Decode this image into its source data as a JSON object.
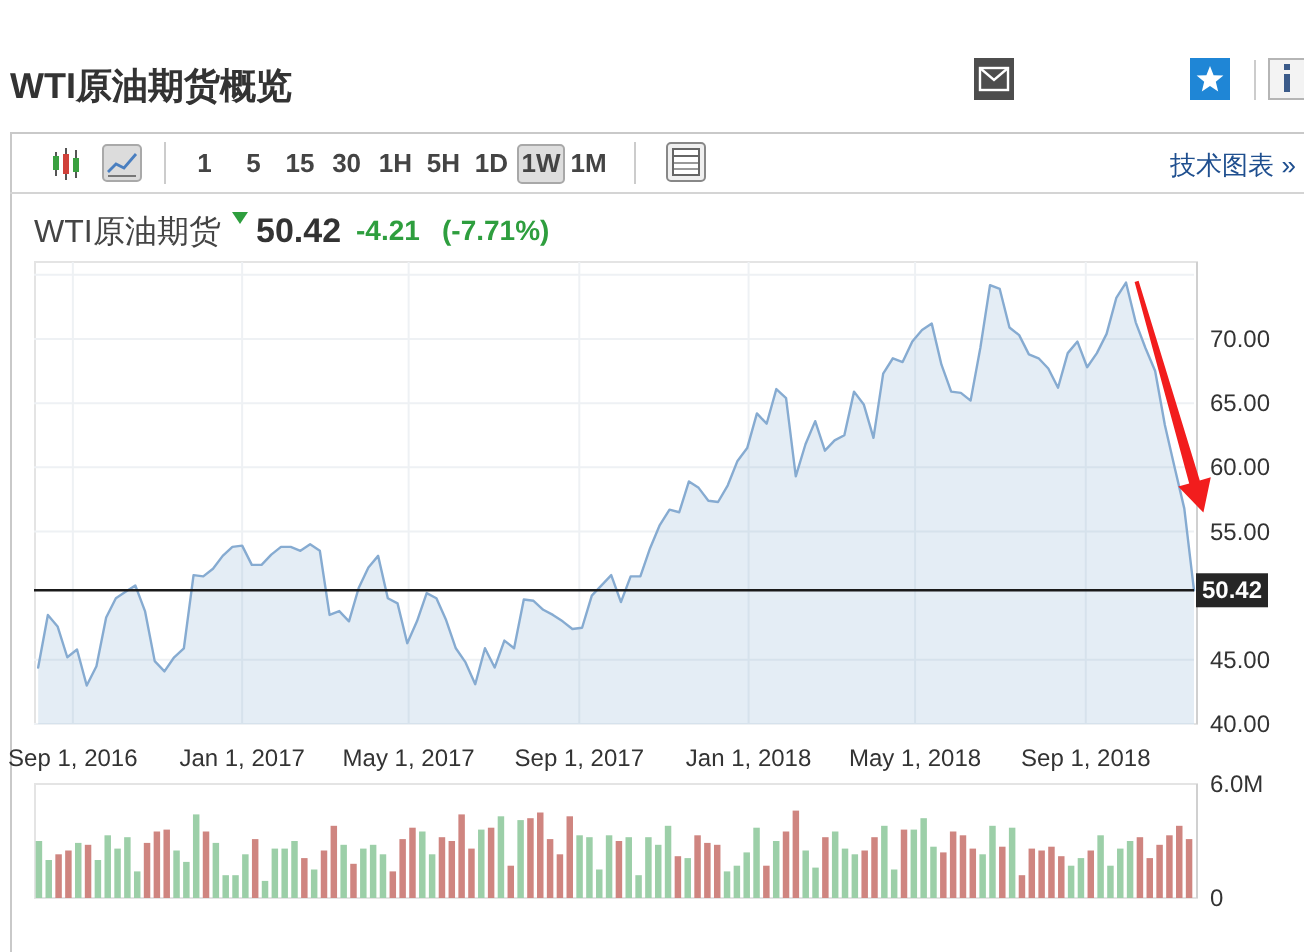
{
  "chart_data": [
    {
      "type": "area",
      "title": "WTI原油期货概览",
      "subtitle": "WTI原油期货",
      "annotations": [
        "1",
        "5",
        "15",
        "30",
        "1H",
        "5H",
        "1D",
        "1W",
        "1M",
        "技术图表 »",
        "50.42",
        "-4.21",
        "(-7.71%)"
      ],
      "x": [
        "2016-08-07",
        "2016-08-14",
        "2016-08-21",
        "2016-08-28",
        "2016-09-04",
        "2016-09-11",
        "2016-09-18",
        "2016-09-25",
        "2016-10-02",
        "2016-10-09",
        "2016-10-16",
        "2016-10-23",
        "2016-10-30",
        "2016-11-06",
        "2016-11-13",
        "2016-11-20",
        "2016-11-27",
        "2016-12-04",
        "2016-12-11",
        "2016-12-18",
        "2016-12-25",
        "2017-01-01",
        "2017-01-08",
        "2017-01-15",
        "2017-01-22",
        "2017-01-29",
        "2017-02-05",
        "2017-02-12",
        "2017-02-19",
        "2017-02-26",
        "2017-03-05",
        "2017-03-12",
        "2017-03-19",
        "2017-03-26",
        "2017-04-02",
        "2017-04-09",
        "2017-04-16",
        "2017-04-23",
        "2017-04-30",
        "2017-05-07",
        "2017-05-14",
        "2017-05-21",
        "2017-05-28",
        "2017-06-04",
        "2017-06-11",
        "2017-06-18",
        "2017-06-25",
        "2017-07-02",
        "2017-07-09",
        "2017-07-16",
        "2017-07-23",
        "2017-07-30",
        "2017-08-06",
        "2017-08-13",
        "2017-08-20",
        "2017-08-27",
        "2017-09-03",
        "2017-09-10",
        "2017-09-17",
        "2017-09-24",
        "2017-10-01",
        "2017-10-08",
        "2017-10-15",
        "2017-10-22",
        "2017-10-29",
        "2017-11-05",
        "2017-11-12",
        "2017-11-19",
        "2017-11-26",
        "2017-12-03",
        "2017-12-10",
        "2017-12-17",
        "2017-12-24",
        "2017-12-31",
        "2018-01-07",
        "2018-01-14",
        "2018-01-21",
        "2018-01-28",
        "2018-02-04",
        "2018-02-11",
        "2018-02-18",
        "2018-02-25",
        "2018-03-04",
        "2018-03-11",
        "2018-03-18",
        "2018-03-25",
        "2018-04-01",
        "2018-04-08",
        "2018-04-15",
        "2018-04-22",
        "2018-04-29",
        "2018-05-06",
        "2018-05-13",
        "2018-05-20",
        "2018-05-27",
        "2018-06-03",
        "2018-06-10",
        "2018-06-17",
        "2018-06-24",
        "2018-07-01",
        "2018-07-08",
        "2018-07-15",
        "2018-07-22",
        "2018-07-29",
        "2018-08-05",
        "2018-08-12",
        "2018-08-19",
        "2018-08-26",
        "2018-09-02",
        "2018-09-09",
        "2018-09-16",
        "2018-09-23",
        "2018-09-30",
        "2018-10-07",
        "2018-10-14",
        "2018-10-21",
        "2018-10-28",
        "2018-11-04",
        "2018-11-11",
        "2018-11-18"
      ],
      "series": [
        {
          "color": "#86abd1",
          "values": [
            44.4,
            48.5,
            47.6,
            45.2,
            45.8,
            43.0,
            44.5,
            48.3,
            49.8,
            50.3,
            50.8,
            48.8,
            44.9,
            44.1,
            45.2,
            45.9,
            51.6,
            51.5,
            52.1,
            53.1,
            53.8,
            53.9,
            52.4,
            52.4,
            53.2,
            53.8,
            53.8,
            53.5,
            54.0,
            53.5,
            48.5,
            48.8,
            48.0,
            50.6,
            52.2,
            53.1,
            49.8,
            49.4,
            46.3,
            48.0,
            50.2,
            49.8,
            48.1,
            45.9,
            44.8,
            43.1,
            45.9,
            44.4,
            46.5,
            45.9,
            49.7,
            49.6,
            48.9,
            48.5,
            48.0,
            47.4,
            47.5,
            50.0,
            50.8,
            51.6,
            49.5,
            51.5,
            51.5,
            53.7,
            55.5,
            56.7,
            56.5,
            58.9,
            58.4,
            57.4,
            57.3,
            58.6,
            60.5,
            61.5,
            64.2,
            63.4,
            66.1,
            65.4,
            59.3,
            61.8,
            63.6,
            61.3,
            62.1,
            62.5,
            65.9,
            64.9,
            62.3,
            67.3,
            68.5,
            68.2,
            69.8,
            70.7,
            71.2,
            68.0,
            65.9,
            65.8,
            65.2,
            69.3,
            74.2,
            73.9,
            70.9,
            70.3,
            68.8,
            68.5,
            67.7,
            66.2,
            68.9,
            69.8,
            67.8,
            68.9,
            70.4,
            73.2,
            74.4,
            71.3,
            69.3,
            67.5,
            63.3,
            60.0,
            56.8,
            50.42
          ]
        }
      ],
      "xlim": [
        "2016-08-04",
        "2018-11-18"
      ],
      "xticks": [
        {
          "value": "2016-09-01",
          "label": "Sep 1, 2016"
        },
        {
          "value": "2017-01-01",
          "label": "Jan 1, 2017"
        },
        {
          "value": "2017-05-01",
          "label": "May 1, 2017"
        },
        {
          "value": "2017-09-01",
          "label": "Sep 1, 2017"
        },
        {
          "value": "2018-01-01",
          "label": "Jan 1, 2018"
        },
        {
          "value": "2018-05-01",
          "label": "May 1, 2018"
        },
        {
          "value": "2018-09-01",
          "label": "Sep 1, 2018"
        }
      ],
      "ylim": [
        40,
        76
      ],
      "yticks": [
        {
          "value": 40,
          "label": "40.00"
        },
        {
          "value": 45,
          "label": "45.00"
        },
        {
          "value": 55,
          "label": "55.00"
        },
        {
          "value": 60,
          "label": "60.00"
        },
        {
          "value": 65,
          "label": "65.00"
        },
        {
          "value": 70,
          "label": "70.00"
        },
        {
          "value": 75,
          "label": null
        }
      ],
      "ref_lines": [
        {
          "axis": "y",
          "value": 50.42,
          "label": "50.42",
          "color": "#1a1a1a"
        }
      ],
      "grid": true
    },
    {
      "type": "bar",
      "categories": [
        null,
        null,
        null,
        null,
        null,
        null,
        null,
        null,
        null,
        null,
        null,
        null,
        null,
        null,
        null,
        null,
        null,
        null,
        null,
        null,
        null,
        null,
        null,
        null,
        null,
        null,
        null,
        null,
        null,
        null,
        null,
        null,
        null,
        null,
        null,
        null,
        null,
        null,
        null,
        null,
        null,
        null,
        null,
        null,
        null,
        null,
        null,
        null,
        null,
        null,
        null,
        null,
        null,
        null,
        null,
        null,
        null,
        null,
        null,
        null,
        null,
        null,
        null,
        null,
        null,
        null,
        null,
        null,
        null,
        null,
        null,
        null,
        null,
        null,
        null,
        null,
        null,
        null,
        null,
        null,
        null,
        null,
        null,
        null,
        null,
        null,
        null,
        null,
        null,
        null,
        null,
        null,
        null,
        null,
        null,
        null,
        null,
        null,
        null,
        null,
        null,
        null,
        null,
        null,
        null,
        null,
        null,
        null,
        null,
        null,
        null,
        null,
        null,
        null,
        null,
        null,
        null,
        null
      ],
      "values": [
        3.0,
        2.0,
        2.3,
        2.5,
        2.9,
        2.8,
        2.0,
        3.3,
        2.6,
        3.2,
        1.4,
        2.9,
        3.5,
        3.6,
        2.5,
        1.9,
        4.4,
        3.5,
        2.9,
        1.2,
        1.2,
        2.3,
        3.1,
        0.9,
        2.6,
        2.6,
        3.0,
        2.1,
        1.5,
        2.5,
        3.8,
        2.8,
        1.8,
        2.6,
        2.8,
        2.3,
        1.4,
        3.1,
        3.7,
        3.5,
        2.3,
        3.2,
        3.0,
        4.4,
        2.6,
        3.6,
        3.7,
        4.3,
        1.7,
        4.1,
        4.2,
        4.5,
        3.1,
        2.3,
        4.3,
        3.3,
        3.2,
        1.5,
        3.3,
        3.0,
        3.2,
        1.2,
        3.2,
        2.8,
        3.8,
        2.2,
        2.1,
        3.3,
        2.9,
        2.8,
        1.4,
        1.7,
        2.4,
        3.7,
        1.7,
        3.0,
        3.5,
        4.6,
        2.5,
        1.6,
        3.2,
        3.5,
        2.6,
        2.3,
        2.5,
        3.2,
        3.8,
        1.5,
        3.6,
        3.6,
        4.2,
        2.7,
        2.4,
        3.5,
        3.3,
        2.6,
        2.3,
        3.8,
        2.7,
        3.7,
        1.2,
        2.6,
        2.5,
        2.7,
        2.2,
        1.7,
        2.1,
        2.5,
        3.3,
        1.7,
        2.6,
        3.0,
        3.2,
        2.1,
        2.8,
        3.3,
        3.8,
        3.1
      ],
      "colors": [
        "#9ccfa8",
        "#9ccfa8",
        "#cf8580",
        "#cf8580",
        "#9ccfa8",
        "#cf8580",
        "#9ccfa8",
        "#9ccfa8",
        "#9ccfa8",
        "#9ccfa8",
        "#9ccfa8",
        "#cf8580",
        "#cf8580",
        "#cf8580",
        "#9ccfa8",
        "#9ccfa8",
        "#9ccfa8",
        "#cf8580",
        "#9ccfa8",
        "#9ccfa8",
        "#9ccfa8",
        "#9ccfa8",
        "#cf8580",
        "#9ccfa8",
        "#9ccfa8",
        "#9ccfa8",
        "#9ccfa8",
        "#cf8580",
        "#9ccfa8",
        "#cf8580",
        "#cf8580",
        "#9ccfa8",
        "#cf8580",
        "#9ccfa8",
        "#9ccfa8",
        "#9ccfa8",
        "#cf8580",
        "#cf8580",
        "#cf8580",
        "#9ccfa8",
        "#9ccfa8",
        "#cf8580",
        "#cf8580",
        "#cf8580",
        "#cf8580",
        "#9ccfa8",
        "#cf8580",
        "#9ccfa8",
        "#cf8580",
        "#9ccfa8",
        "#cf8580",
        "#cf8580",
        "#cf8580",
        "#cf8580",
        "#cf8580",
        "#9ccfa8",
        "#9ccfa8",
        "#9ccfa8",
        "#9ccfa8",
        "#cf8580",
        "#9ccfa8",
        "#9ccfa8",
        "#9ccfa8",
        "#9ccfa8",
        "#9ccfa8",
        "#cf8580",
        "#9ccfa8",
        "#cf8580",
        "#cf8580",
        "#cf8580",
        "#9ccfa8",
        "#9ccfa8",
        "#9ccfa8",
        "#9ccfa8",
        "#cf8580",
        "#9ccfa8",
        "#cf8580",
        "#cf8580",
        "#9ccfa8",
        "#9ccfa8",
        "#cf8580",
        "#9ccfa8",
        "#9ccfa8",
        "#9ccfa8",
        "#cf8580",
        "#cf8580",
        "#9ccfa8",
        "#9ccfa8",
        "#cf8580",
        "#9ccfa8",
        "#9ccfa8",
        "#9ccfa8",
        "#cf8580",
        "#cf8580",
        "#cf8580",
        "#cf8580",
        "#9ccfa8",
        "#9ccfa8",
        "#cf8580",
        "#9ccfa8",
        "#cf8580",
        "#cf8580",
        "#cf8580",
        "#cf8580",
        "#cf8580",
        "#9ccfa8",
        "#9ccfa8",
        "#cf8580",
        "#9ccfa8",
        "#9ccfa8",
        "#9ccfa8",
        "#9ccfa8",
        "#cf8580",
        "#cf8580",
        "#cf8580",
        "#cf8580",
        "#cf8580",
        "#cf8580"
      ],
      "ylim": [
        0,
        6
      ],
      "yticks": [
        0,
        {
          "value": 6,
          "label": "6.0M"
        }
      ]
    }
  ]
}
